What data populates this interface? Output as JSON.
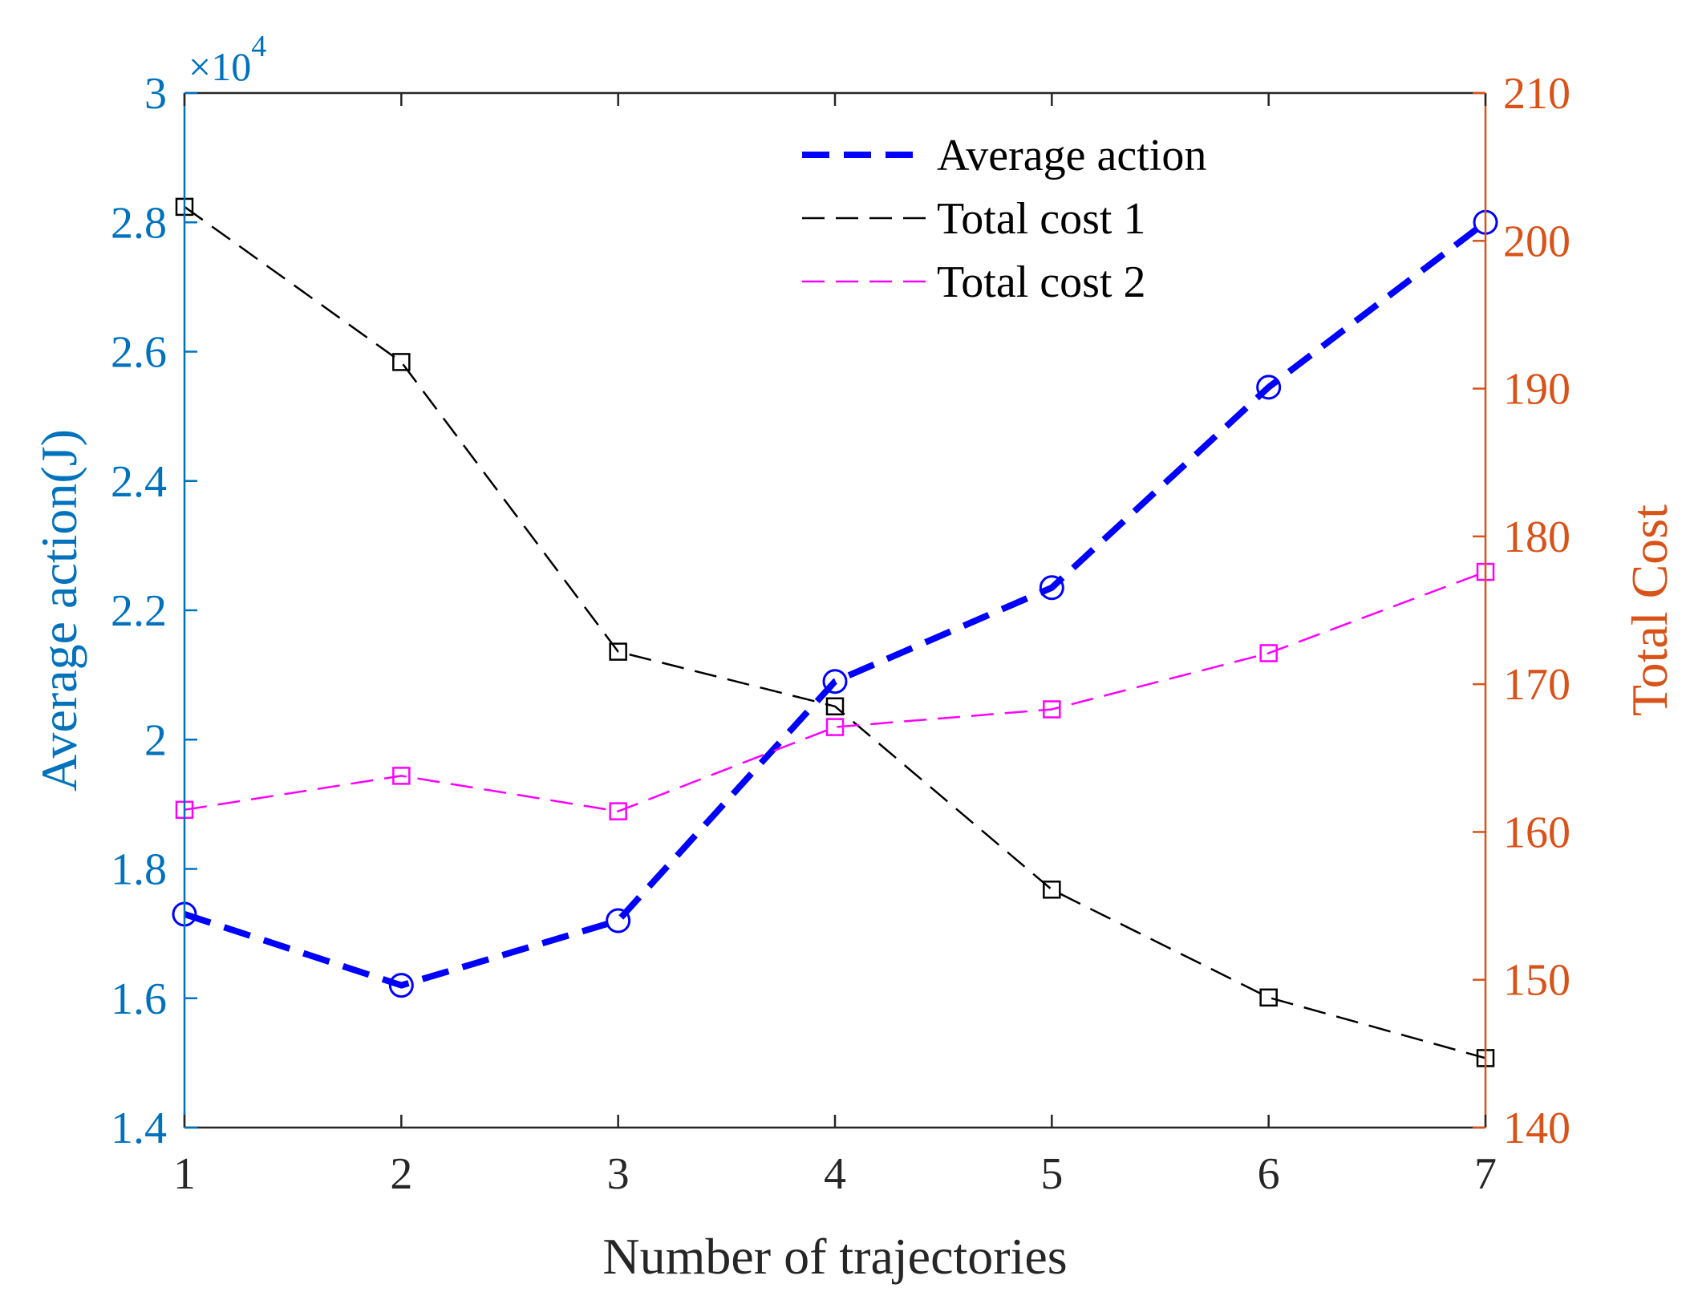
{
  "chart_data": {
    "type": "line",
    "xlabel": "Number of trajectories",
    "x": [
      1,
      2,
      3,
      4,
      5,
      6,
      7
    ],
    "xlim": [
      1,
      7
    ],
    "x_ticks": [
      "1",
      "2",
      "3",
      "4",
      "5",
      "6",
      "7"
    ],
    "y_left": {
      "label": "Average action(J)",
      "ylim": [
        1.4,
        3.0
      ],
      "ticks": [
        "1.4",
        "1.6",
        "1.8",
        "2",
        "2.2",
        "2.4",
        "2.6",
        "2.8",
        "3"
      ],
      "exponent_label": "×10",
      "exponent_power": "4",
      "color": "#0072BD"
    },
    "y_right": {
      "label": "Total Cost",
      "ylim": [
        140,
        210
      ],
      "ticks": [
        "140",
        "150",
        "160",
        "170",
        "180",
        "190",
        "200",
        "210"
      ],
      "color": "#D95319"
    },
    "series": [
      {
        "name": "Average action",
        "axis": "left",
        "color": "#0000FF",
        "style": "dashed-thick",
        "marker": "circle",
        "values": [
          1.73,
          1.62,
          1.72,
          2.09,
          2.235,
          2.545,
          2.8
        ]
      },
      {
        "name": "Total cost 1",
        "axis": "right",
        "color": "#000000",
        "style": "dashed-thin",
        "marker": "square",
        "values": [
          202.3,
          191.8,
          172.2,
          168.5,
          156.1,
          148.8,
          144.7
        ]
      },
      {
        "name": "Total cost 2",
        "axis": "right",
        "color": "#FF00FF",
        "style": "dashed-thin",
        "marker": "square",
        "values": [
          161.5,
          163.8,
          161.4,
          167.1,
          168.3,
          172.1,
          177.6
        ]
      }
    ],
    "legend": {
      "position": "top-right",
      "entries": [
        "Average action",
        "Total cost 1",
        "Total cost 2"
      ]
    }
  }
}
